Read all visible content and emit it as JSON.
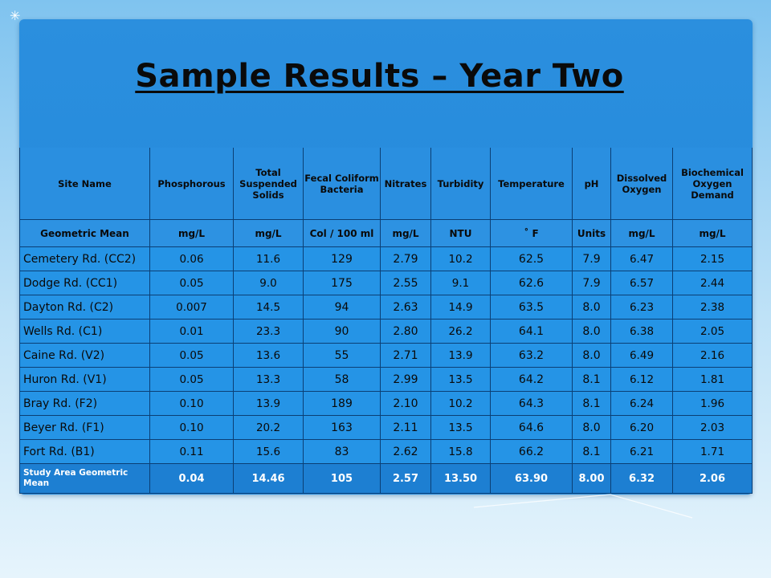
{
  "title": "Sample Results – Year Two",
  "headers": [
    "Site Name",
    "Phosphorous",
    "Total Suspended Solids",
    "Fecal Coliform Bacteria",
    "Nitrates",
    "Turbidity",
    "Temperature",
    "pH",
    "Dissolved Oxygen",
    "Biochemical Oxygen Demand"
  ],
  "units": [
    "Geometric Mean",
    "mg/L",
    "mg/L",
    "Col / 100 ml",
    "mg/L",
    "NTU",
    "˚ F",
    "Units",
    "mg/L",
    "mg/L"
  ],
  "rows": [
    [
      "Cemetery Rd. (CC2)",
      "0.06",
      "11.6",
      "129",
      "2.79",
      "10.2",
      "62.5",
      "7.9",
      "6.47",
      "2.15"
    ],
    [
      "Dodge Rd. (CC1)",
      "0.05",
      "9.0",
      "175",
      "2.55",
      "9.1",
      "62.6",
      "7.9",
      "6.57",
      "2.44"
    ],
    [
      "Dayton Rd. (C2)",
      "0.007",
      "14.5",
      "94",
      "2.63",
      "14.9",
      "63.5",
      "8.0",
      "6.23",
      "2.38"
    ],
    [
      "Wells Rd. (C1)",
      "0.01",
      "23.3",
      "90",
      "2.80",
      "26.2",
      "64.1",
      "8.0",
      "6.38",
      "2.05"
    ],
    [
      "Caine Rd. (V2)",
      "0.05",
      "13.6",
      "55",
      "2.71",
      "13.9",
      "63.2",
      "8.0",
      "6.49",
      "2.16"
    ],
    [
      "Huron Rd. (V1)",
      "0.05",
      "13.3",
      "58",
      "2.99",
      "13.5",
      "64.2",
      "8.1",
      "6.12",
      "1.81"
    ],
    [
      "Bray Rd. (F2)",
      "0.10",
      "13.9",
      "189",
      "2.10",
      "10.2",
      "64.3",
      "8.1",
      "6.24",
      "1.96"
    ],
    [
      "Beyer Rd. (F1)",
      "0.10",
      "20.2",
      "163",
      "2.11",
      "13.5",
      "64.6",
      "8.0",
      "6.20",
      "2.03"
    ],
    [
      "Fort Rd. (B1)",
      "0.11",
      "15.6",
      "83",
      "2.62",
      "15.8",
      "66.2",
      "8.1",
      "6.21",
      "1.71"
    ]
  ],
  "summary": [
    "Study Area Geometric Mean",
    "0.04",
    "14.46",
    "105",
    "2.57",
    "13.50",
    "63.90",
    "8.00",
    "6.32",
    "2.06"
  ],
  "colors": {
    "panel": "#1f86da",
    "background": "#bfe2f7",
    "text": "#0a0a0a"
  }
}
